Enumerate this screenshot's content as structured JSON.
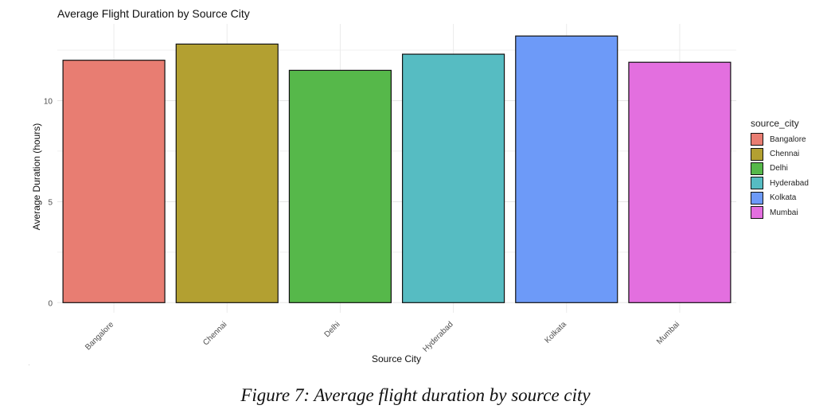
{
  "chart_data": {
    "type": "bar",
    "title": "Average Flight Duration by Source City",
    "xlabel": "Source City",
    "ylabel": "Average Duration (hours)",
    "categories": [
      "Bangalore",
      "Chennai",
      "Delhi",
      "Hyderabad",
      "Kolkata",
      "Mumbai"
    ],
    "values": [
      12.0,
      12.8,
      11.5,
      12.3,
      13.2,
      11.9
    ],
    "colors": [
      "#E87D72",
      "#B3A031",
      "#56B84A",
      "#56BCC2",
      "#6D9AF8",
      "#E36FDF"
    ],
    "yticks": [
      0,
      5,
      10
    ],
    "ylim": [
      -0.5,
      13.8
    ],
    "grid": true,
    "legend": {
      "title": "source_city",
      "placement": "right",
      "items": [
        "Bangalore",
        "Chennai",
        "Delhi",
        "Hyderabad",
        "Kolkata",
        "Mumbai"
      ]
    }
  },
  "caption": "Figure 7: Average flight duration by source city"
}
